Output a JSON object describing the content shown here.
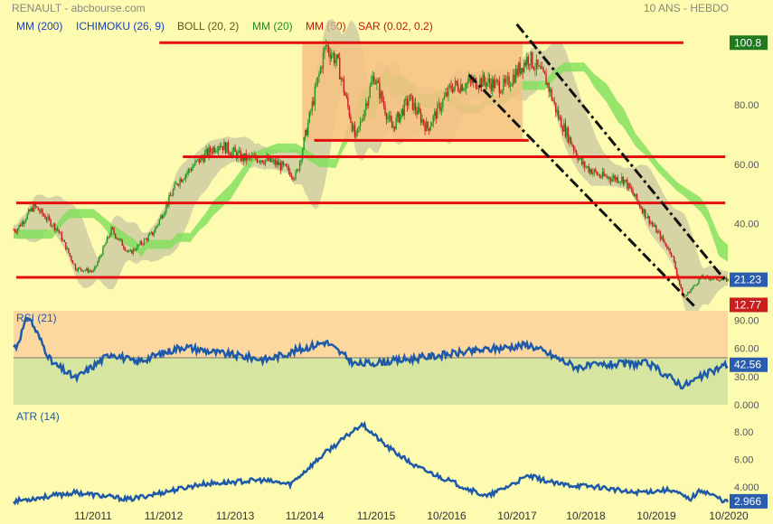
{
  "header": {
    "source": "RENAULT - abcbourse.com",
    "period": "10 ANS - HEBDO"
  },
  "legend": [
    {
      "label": "MM (200)",
      "color": "#1a3fbf"
    },
    {
      "label": "ICHIMOKU (26, 9)",
      "color": "#1a3fbf"
    },
    {
      "label": "BOLL (20, 2)",
      "color": "#5a5a20"
    },
    {
      "label": "MM (20)",
      "color": "#1f8f1f"
    },
    {
      "label": "MM (50)",
      "color": "#d01010"
    },
    {
      "label": "SAR (0.02, 0.2)",
      "color": "#d01010"
    }
  ],
  "colors": {
    "background": "#fdfbb0",
    "up_candle": "#1f9a1f",
    "down_candle": "#c81e1e",
    "support_line": "#e41010",
    "cloud": "#7ee05a",
    "bollinger_band": "#c8c6a0",
    "rectangle_zone": "#f7c184",
    "rsi_line": "#1e5aa8",
    "atr_line": "#1e5aa8",
    "rsi_overbought_zone": "#fcd8a0",
    "rsi_oversold_zone": "#d6e6a0"
  },
  "price_badges": [
    {
      "label": "100.8",
      "bg": "#1f7a1f",
      "value": 100.8
    },
    {
      "label": "21.23",
      "bg": "#2a5cb0",
      "value": 21.23
    },
    {
      "label": "12.77",
      "bg": "#c81e1e",
      "value": 12.77
    }
  ],
  "panels": {
    "rsi": {
      "title": "RSI (21)",
      "current_label": "42.56",
      "current_value": 42.56
    },
    "atr": {
      "title": "ATR (14)",
      "current_label": "2.966",
      "current_value": 2.966
    }
  },
  "chart_data": [
    {
      "type": "candlestick",
      "title": "",
      "x_axis": {
        "tick_labels": [
          "11/2011",
          "11/2012",
          "11/2013",
          "11/2014",
          "11/2015",
          "10/2016",
          "10/2017",
          "10/2018",
          "10/2019",
          "10/2020"
        ]
      },
      "y_axis": {
        "tick_labels": [
          "80.00",
          "60.00",
          "40.00"
        ],
        "range": [
          12,
          103
        ]
      },
      "price_path_weekly_close_approx": [
        {
          "date": "2010-11",
          "value": 38
        },
        {
          "date": "2011-02",
          "value": 46
        },
        {
          "date": "2011-06",
          "value": 38
        },
        {
          "date": "2011-09",
          "value": 25
        },
        {
          "date": "2011-12",
          "value": 24
        },
        {
          "date": "2012-03",
          "value": 38
        },
        {
          "date": "2012-06",
          "value": 30
        },
        {
          "date": "2012-10",
          "value": 37
        },
        {
          "date": "2013-02",
          "value": 54
        },
        {
          "date": "2013-05",
          "value": 60
        },
        {
          "date": "2013-09",
          "value": 67
        },
        {
          "date": "2014-01",
          "value": 62
        },
        {
          "date": "2014-04",
          "value": 62
        },
        {
          "date": "2014-07",
          "value": 60
        },
        {
          "date": "2014-10",
          "value": 56
        },
        {
          "date": "2015-03",
          "value": 100
        },
        {
          "date": "2015-05",
          "value": 94
        },
        {
          "date": "2015-08",
          "value": 68
        },
        {
          "date": "2015-11",
          "value": 90
        },
        {
          "date": "2016-02",
          "value": 72
        },
        {
          "date": "2016-05",
          "value": 82
        },
        {
          "date": "2016-08",
          "value": 72
        },
        {
          "date": "2016-12",
          "value": 86
        },
        {
          "date": "2017-05",
          "value": 88
        },
        {
          "date": "2017-09",
          "value": 86
        },
        {
          "date": "2018-01",
          "value": 96
        },
        {
          "date": "2018-04",
          "value": 88
        },
        {
          "date": "2018-06",
          "value": 76
        },
        {
          "date": "2018-10",
          "value": 60
        },
        {
          "date": "2019-01",
          "value": 56
        },
        {
          "date": "2019-05",
          "value": 55
        },
        {
          "date": "2019-09",
          "value": 42
        },
        {
          "date": "2020-01",
          "value": 30
        },
        {
          "date": "2020-03",
          "value": 15
        },
        {
          "date": "2020-06",
          "value": 22
        },
        {
          "date": "2020-10",
          "value": 21.23
        }
      ],
      "horizontal_levels": [
        100.8,
        68,
        62.5,
        47,
        22
      ],
      "channel": {
        "upper": [
          {
            "date": "2017-11",
            "value": 107
          },
          {
            "date": "2020-10",
            "value": 21
          }
        ],
        "lower": [
          {
            "date": "2017-03",
            "value": 90
          },
          {
            "date": "2020-05",
            "value": 12
          }
        ]
      },
      "last_value": 21.23
    },
    {
      "type": "line",
      "title": "RSI (21)",
      "y_axis": {
        "tick_labels": [
          "90.00",
          "60.00",
          "30.00",
          "0.000"
        ],
        "range": [
          0,
          100
        ]
      },
      "zones": {
        "overbought_from": 50,
        "oversold_to": 50
      },
      "series": [
        {
          "values_approx": [
            {
              "date": "2010-11",
              "value": 62
            },
            {
              "date": "2011-01",
              "value": 95
            },
            {
              "date": "2011-05",
              "value": 45
            },
            {
              "date": "2011-09",
              "value": 28
            },
            {
              "date": "2012-03",
              "value": 55
            },
            {
              "date": "2012-07",
              "value": 45
            },
            {
              "date": "2013-03",
              "value": 62
            },
            {
              "date": "2013-09",
              "value": 55
            },
            {
              "date": "2014-05",
              "value": 48
            },
            {
              "date": "2015-03",
              "value": 67
            },
            {
              "date": "2015-08",
              "value": 43
            },
            {
              "date": "2016-03",
              "value": 47
            },
            {
              "date": "2017-01",
              "value": 55
            },
            {
              "date": "2018-01",
              "value": 64
            },
            {
              "date": "2018-09",
              "value": 40
            },
            {
              "date": "2019-03",
              "value": 43
            },
            {
              "date": "2019-09",
              "value": 44
            },
            {
              "date": "2020-03",
              "value": 20
            },
            {
              "date": "2020-10",
              "value": 42.56
            }
          ]
        }
      ],
      "last_value": 42.56
    },
    {
      "type": "line",
      "title": "ATR (14)",
      "y_axis": {
        "tick_labels": [
          "8.00",
          "6.00",
          "4.000"
        ],
        "range": [
          2.5,
          9.5
        ]
      },
      "series": [
        {
          "values_approx": [
            {
              "date": "2010-11",
              "value": 3.0
            },
            {
              "date": "2011-09",
              "value": 3.6
            },
            {
              "date": "2012-06",
              "value": 3.1
            },
            {
              "date": "2013-06",
              "value": 4.2
            },
            {
              "date": "2014-04",
              "value": 4.5
            },
            {
              "date": "2014-09",
              "value": 4.2
            },
            {
              "date": "2015-03",
              "value": 6.5
            },
            {
              "date": "2015-06",
              "value": 7.5
            },
            {
              "date": "2015-09",
              "value": 8.6
            },
            {
              "date": "2016-01",
              "value": 7.0
            },
            {
              "date": "2016-06",
              "value": 5.5
            },
            {
              "date": "2017-01",
              "value": 4.2
            },
            {
              "date": "2017-06",
              "value": 3.3
            },
            {
              "date": "2018-01",
              "value": 4.8
            },
            {
              "date": "2018-06",
              "value": 4.2
            },
            {
              "date": "2019-01",
              "value": 4.0
            },
            {
              "date": "2019-06",
              "value": 3.6
            },
            {
              "date": "2020-01",
              "value": 3.8
            },
            {
              "date": "2020-04",
              "value": 3.1
            },
            {
              "date": "2020-06",
              "value": 3.8
            },
            {
              "date": "2020-10",
              "value": 2.966
            }
          ]
        }
      ],
      "last_value": 2.966
    }
  ]
}
